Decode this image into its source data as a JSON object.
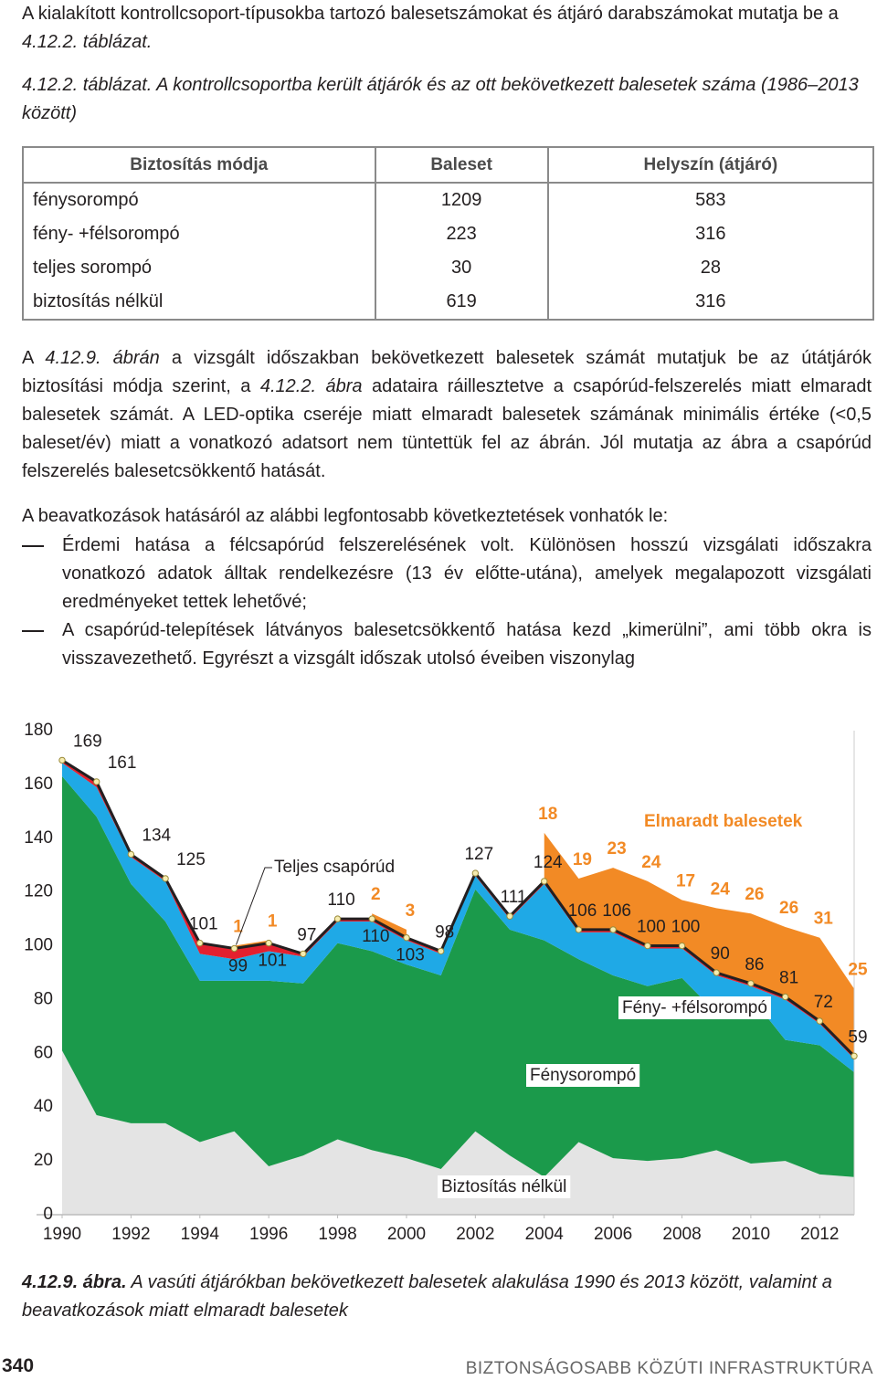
{
  "intro": [
    "A kialakított kontrollcsoport-típusokba tartozó balesetszámokat és átjáró darabszámokat mutatja be a ",
    "4.12.2. táblázat."
  ],
  "table_caption": "4.12.2. táblázat. A kontrollcsoportba került átjárók és az ott bekövetkezett balesetek száma (1986–2013 között)",
  "table": {
    "header": [
      "Biztosítás módja",
      "Baleset",
      "Helyszín (átjáró)"
    ],
    "rows": [
      [
        "fénysorompó",
        1209,
        583
      ],
      [
        "fény- +félsorompó",
        223,
        316
      ],
      [
        "teljes sorompó",
        30,
        28
      ],
      [
        "biztosítás nélkül",
        619,
        316
      ]
    ]
  },
  "paragraph1": [
    {
      "text": "A "
    },
    {
      "text": "4.12.9. ábrán",
      "italic": true
    },
    {
      "text": " a vizsgált időszakban bekövetkezett balesetek számát mutatjuk be az útátjárók biztosítási módja szerint, a "
    },
    {
      "text": "4.12.2. ábra",
      "italic": true
    },
    {
      "text": " adataira ráillesztetve a csapórúd-felszerelés miatt elmaradt balesetek számát. A LED-optika cseréje miatt elmaradt balesetek számának minimális értéke (<0,5 baleset/év) miatt a vonatkozó adatsort nem tüntettük fel az ábrán. Jól mutatja az ábra a csapórúd felszerelés balesetcsökkentő hatását."
    }
  ],
  "paragraph2": "A beavatkozások hatásáról az alábbi legfontosabb következtetések vonhatók le:",
  "list": [
    "Érdemi hatása a félcsapórúd felszerelésének volt. Különösen hosszú vizsgálati időszakra vonatkozó adatok álltak rendelkezésre (13 év előtte-utána), amelyek megalapozott vizsgálati eredményeket tettek lehetővé;",
    "A csapórúd-telepítések látványos balesetcsökkentő hatása kezd „kimerülni”, ami több okra is visszavezethető. Egyrészt a vizsgált időszak utolsó éveiben viszonylag"
  ],
  "chart_data": {
    "type": "stacked-area",
    "x": [
      1990,
      1991,
      1992,
      1993,
      1994,
      1995,
      1996,
      1997,
      1998,
      1999,
      2000,
      2001,
      2002,
      2003,
      2004,
      2005,
      2006,
      2007,
      2008,
      2009,
      2010,
      2011,
      2012,
      2013
    ],
    "xlim": [
      1990,
      2013
    ],
    "xticks": [
      1990,
      1992,
      1994,
      1996,
      1998,
      2000,
      2002,
      2004,
      2006,
      2008,
      2010,
      2012
    ],
    "ylim": [
      0,
      180
    ],
    "yticks": [
      0,
      20,
      40,
      60,
      80,
      100,
      120,
      140,
      160,
      180
    ],
    "series": [
      {
        "name": "Biztosítás nélkül",
        "color": "#e4e4e4",
        "values": [
          61,
          37,
          34,
          34,
          27,
          31,
          18,
          22,
          28,
          24,
          21,
          17,
          31,
          22,
          14,
          27,
          21,
          20,
          21,
          24,
          19,
          20,
          15,
          14
        ]
      },
      {
        "name": "Fénysorompó",
        "color": "#1b9a4b",
        "values": [
          102,
          111,
          89,
          75,
          60,
          56,
          69,
          64,
          73,
          74,
          72,
          72,
          90,
          84,
          88,
          68,
          68,
          65,
          67,
          51,
          62,
          45,
          48,
          39
        ]
      },
      {
        "name": "Fény- +félsorompó",
        "color": "#1fa9e6",
        "values": [
          5,
          11,
          10,
          15,
          10,
          8,
          11,
          10,
          8,
          11,
          9,
          8,
          5,
          4,
          21,
          10,
          16,
          14,
          11,
          14,
          4,
          15,
          8,
          5
        ]
      },
      {
        "name": "Teljes csapórúd",
        "color": "#e3202f",
        "values": [
          1,
          2,
          1,
          1,
          4,
          4,
          3,
          1,
          1,
          1,
          1,
          1,
          1,
          1,
          1,
          1,
          1,
          1,
          1,
          1,
          1,
          1,
          1,
          1
        ]
      },
      {
        "name": "Elmaradt balesetek",
        "color": "#f28a25",
        "values": [
          null,
          null,
          null,
          null,
          null,
          1,
          1,
          null,
          null,
          2,
          3,
          null,
          null,
          null,
          18,
          19,
          23,
          24,
          17,
          24,
          26,
          26,
          31,
          25
        ]
      }
    ],
    "total_line": {
      "color": "#231f20",
      "values": [
        169,
        161,
        134,
        125,
        101,
        99,
        101,
        97,
        110,
        110,
        103,
        98,
        127,
        111,
        124,
        106,
        106,
        100,
        100,
        90,
        86,
        81,
        72,
        59
      ]
    }
  },
  "figure_caption": {
    "label": "4.12.9. ábra.",
    "text": " A vasúti átjárókban bekövetkezett balesetek alakulása 1990 és 2013 között, valamint a beavatkozások miatt elmaradt balesetek"
  },
  "footer": {
    "page_number": "340",
    "running_title": "BIZTONSÁGOSABB KÖZÚTI INFRASTRUKTÚRA"
  }
}
